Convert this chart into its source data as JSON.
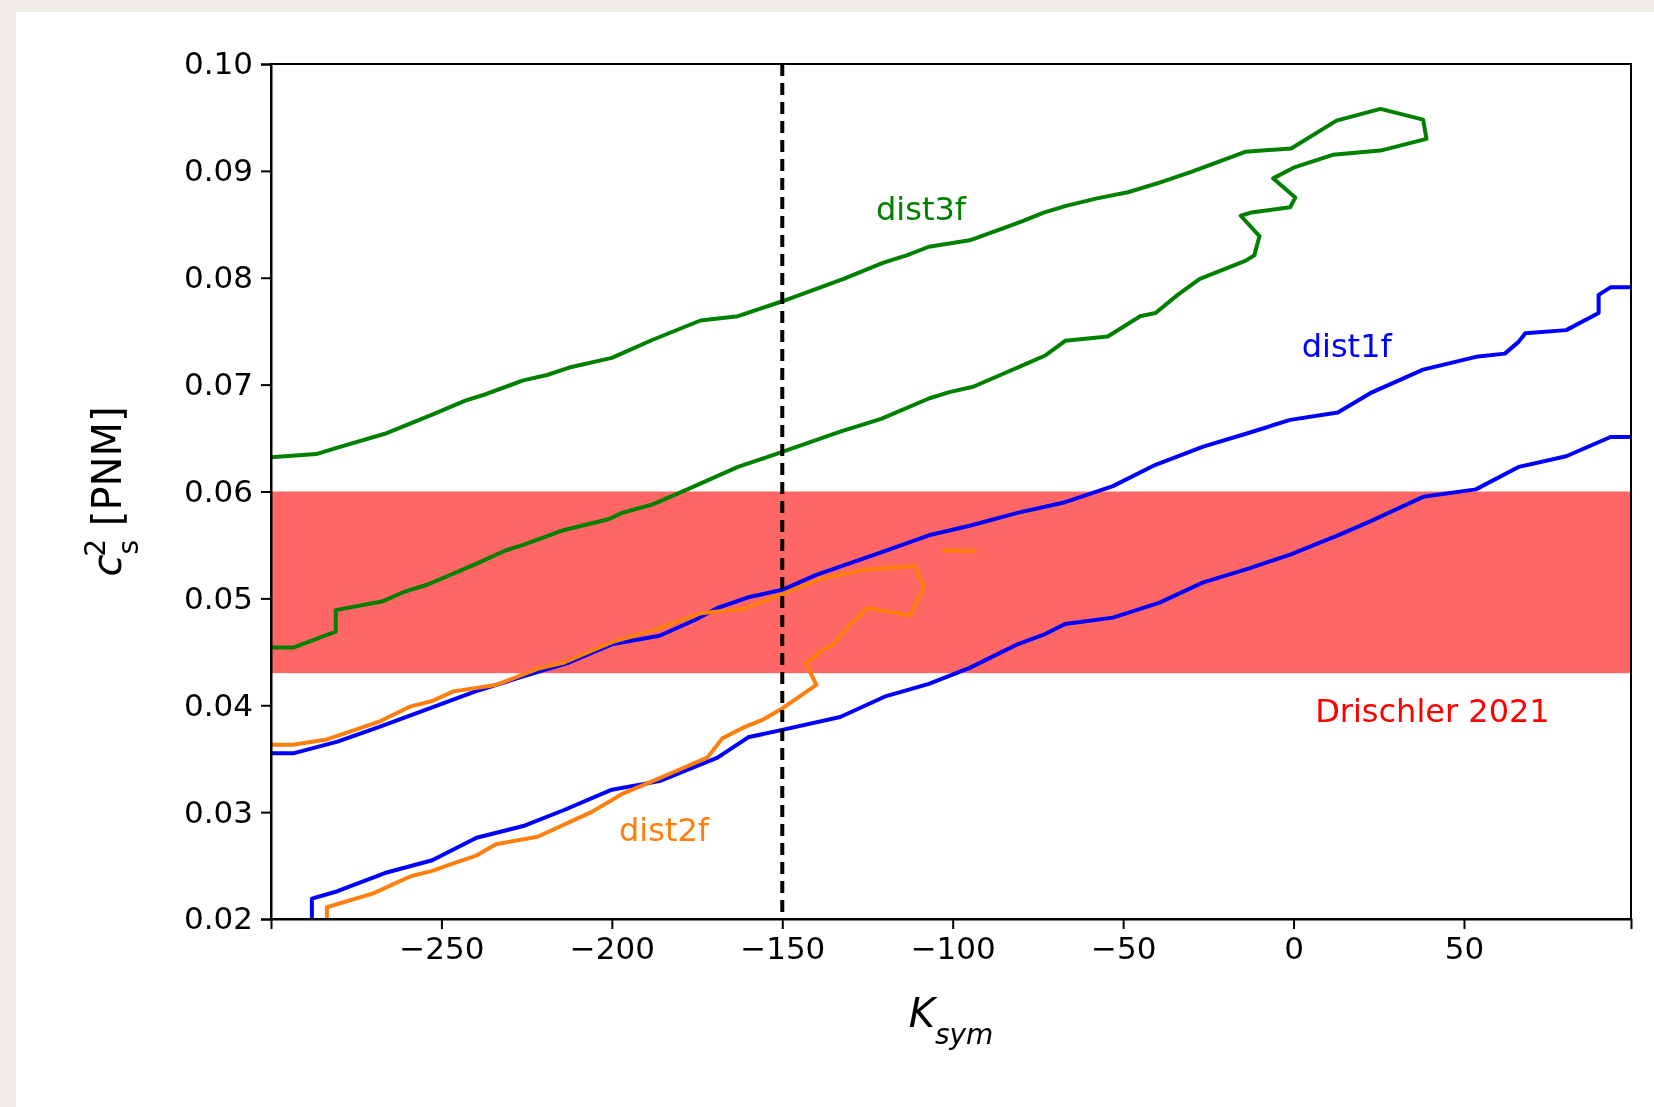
{
  "chart_data": {
    "type": "line",
    "xlabel": "K$_{sym}$",
    "ylabel": "c$_{s}$$^{2}$ [PNM]",
    "xlim": [
      -300,
      99
    ],
    "ylim": [
      0.02,
      0.1
    ],
    "xticks": [
      {
        "value": -250,
        "label": "−250"
      },
      {
        "value": -200,
        "label": "−200"
      },
      {
        "value": -150,
        "label": "−150"
      },
      {
        "value": -100,
        "label": "−100"
      },
      {
        "value": -50,
        "label": "−50"
      },
      {
        "value": 0,
        "label": "0"
      },
      {
        "value": 50,
        "label": "50"
      }
    ],
    "yticks": [
      {
        "value": 0.02,
        "label": "0.02"
      },
      {
        "value": 0.03,
        "label": "0.03"
      },
      {
        "value": 0.04,
        "label": "0.04"
      },
      {
        "value": 0.05,
        "label": "0.05"
      },
      {
        "value": 0.06,
        "label": "0.06"
      },
      {
        "value": 0.07,
        "label": "0.07"
      },
      {
        "value": 0.08,
        "label": "0.08"
      },
      {
        "value": 0.09,
        "label": "0.09"
      },
      {
        "value": 0.1,
        "label": "0.10"
      }
    ],
    "grid": false,
    "marker": "none",
    "line_style": "solid",
    "series": [
      {
        "name": "dist3f",
        "color": "#008000",
        "x": [
          -300,
          -293.5,
          -281,
          -281,
          -267.5,
          -261,
          -254,
          -240,
          -231,
          -226,
          -214,
          -201,
          -197,
          -188,
          -178.5,
          -163,
          -150,
          -133,
          -121,
          -107,
          -101,
          -94,
          -79.5,
          -73,
          -67,
          -54.5,
          -45,
          -40.5,
          -34,
          -27.5,
          -14,
          -11.5,
          -10,
          -15.5,
          -12.5,
          -1,
          0.5,
          -6,
          0,
          11.5,
          25.5,
          39,
          38,
          25.5,
          12.6,
          -0.7,
          -14,
          -20.7,
          -30,
          -39.3,
          -48.6,
          -58,
          -67,
          -73.3,
          -79.5,
          -95,
          -107,
          -113.5,
          -120.5,
          -132,
          -150,
          -163,
          -174,
          -188,
          -200,
          -212.5,
          -219,
          -226,
          -237,
          -243,
          -252.7,
          -266.6,
          -280.5,
          -286.7,
          -300
        ],
        "values": [
          0.0454,
          0.0454,
          0.0469,
          0.0489,
          0.0497,
          0.0506,
          0.0513,
          0.0532,
          0.0545,
          0.055,
          0.0564,
          0.0574,
          0.058,
          0.0588,
          0.0601,
          0.0623,
          0.0637,
          0.0656,
          0.0668,
          0.0687,
          0.0693,
          0.0698,
          0.0718,
          0.0727,
          0.0741,
          0.0745,
          0.0764,
          0.0767,
          0.0784,
          0.0799,
          0.0816,
          0.0821,
          0.0839,
          0.0858,
          0.0861,
          0.0866,
          0.0875,
          0.0893,
          0.0903,
          0.0915,
          0.0919,
          0.093,
          0.0948,
          0.0958,
          0.0947,
          0.0921,
          0.0918,
          0.091,
          0.0899,
          0.0889,
          0.088,
          0.0874,
          0.0867,
          0.0861,
          0.0853,
          0.0835,
          0.0829,
          0.0821,
          0.0814,
          0.0799,
          0.0778,
          0.0764,
          0.076,
          0.0742,
          0.0725,
          0.0716,
          0.0709,
          0.0704,
          0.0691,
          0.0685,
          0.0672,
          0.0654,
          0.0641,
          0.0635,
          0.0632
        ]
      },
      {
        "name": "dist1f",
        "color": "#0000ff",
        "x": [
          -300,
          -293.5,
          -280.5,
          -268,
          -252.7,
          -240,
          -226,
          -212.5,
          -200,
          -186,
          -175.5,
          -169,
          -160,
          -150,
          -140,
          -121,
          -107,
          -95,
          -81,
          -67,
          -53,
          -40.5,
          -26.5,
          -13,
          -1,
          13,
          22.5,
          38,
          53.5,
          62,
          66,
          68,
          80,
          89.5,
          89.5,
          93,
          99,
          null,
          -288,
          -288,
          -280.5,
          -266.6,
          -252.7,
          -239.7,
          -226,
          -214,
          -200,
          -186,
          -169,
          -160,
          -150,
          -133,
          -120,
          -107,
          -95,
          -81,
          -73.3,
          -67,
          -53,
          -39.3,
          -26.5,
          -13,
          -1,
          13,
          22.5,
          38,
          53.5,
          66,
          80,
          93,
          99
        ],
        "values": [
          0.0355,
          0.0355,
          0.0366,
          0.038,
          0.0398,
          0.0413,
          0.0427,
          0.044,
          0.0457,
          0.0465,
          0.048,
          0.0491,
          0.0501,
          0.0508,
          0.0522,
          0.0543,
          0.0559,
          0.0568,
          0.058,
          0.059,
          0.0605,
          0.0625,
          0.0642,
          0.0655,
          0.0667,
          0.0674,
          0.0692,
          0.0714,
          0.0726,
          0.0729,
          0.074,
          0.0748,
          0.0751,
          0.0767,
          0.0784,
          0.0791,
          0.0791,
          null,
          0.02,
          0.0219,
          0.0226,
          0.0243,
          0.0255,
          0.0276,
          0.0287,
          0.0302,
          0.0321,
          0.0329,
          0.0351,
          0.037,
          0.0377,
          0.0389,
          0.0408,
          0.042,
          0.0435,
          0.0457,
          0.0466,
          0.0476,
          0.0482,
          0.0496,
          0.0515,
          0.0528,
          0.0541,
          0.0559,
          0.0572,
          0.0595,
          0.0602,
          0.0623,
          0.0633,
          0.0651,
          0.0651
        ]
      },
      {
        "name": "dist2f",
        "color": "#ff7f0e",
        "x": [
          -300,
          -293.5,
          -283.6,
          -268,
          -259,
          -252.7,
          -246.5,
          -234,
          -221.8,
          -214,
          -200,
          -188,
          -174,
          -161.5,
          -150,
          -138,
          -125.6,
          -111,
          -108.5,
          -112.5,
          -125,
          -130,
          -135,
          -138,
          -143,
          -140,
          -150,
          -156,
          -161.5,
          -167.6,
          -172,
          -181.5,
          -188,
          -197,
          -206,
          -221.8,
          -234,
          -240,
          -246.5,
          -252.7,
          -259,
          -270,
          -283.6,
          -283.6,
          null,
          -103,
          -93
        ],
        "values": [
          0.0363,
          0.0363,
          0.0368,
          0.0385,
          0.0399,
          0.0404,
          0.0413,
          0.0419,
          0.0434,
          0.044,
          0.0459,
          0.047,
          0.0486,
          0.049,
          0.0504,
          0.0519,
          0.0527,
          0.053,
          0.0511,
          0.0484,
          0.0491,
          0.0476,
          0.0457,
          0.0452,
          0.0439,
          0.0419,
          0.0397,
          0.0386,
          0.0379,
          0.0369,
          0.0351,
          0.0338,
          0.0329,
          0.0317,
          0.03,
          0.0277,
          0.027,
          0.0259,
          0.0252,
          0.0245,
          0.024,
          0.0224,
          0.0211,
          0.02,
          null,
          0.0545,
          0.0544
        ]
      }
    ],
    "ref_lines": [
      {
        "axis": "x",
        "value": -150,
        "color": "#000000",
        "line_style": "dashed"
      }
    ],
    "bands": [
      {
        "axis": "y",
        "from": 0.043,
        "to": 0.06,
        "label": "Drischler 2021",
        "color": "#ff0000"
      }
    ]
  }
}
